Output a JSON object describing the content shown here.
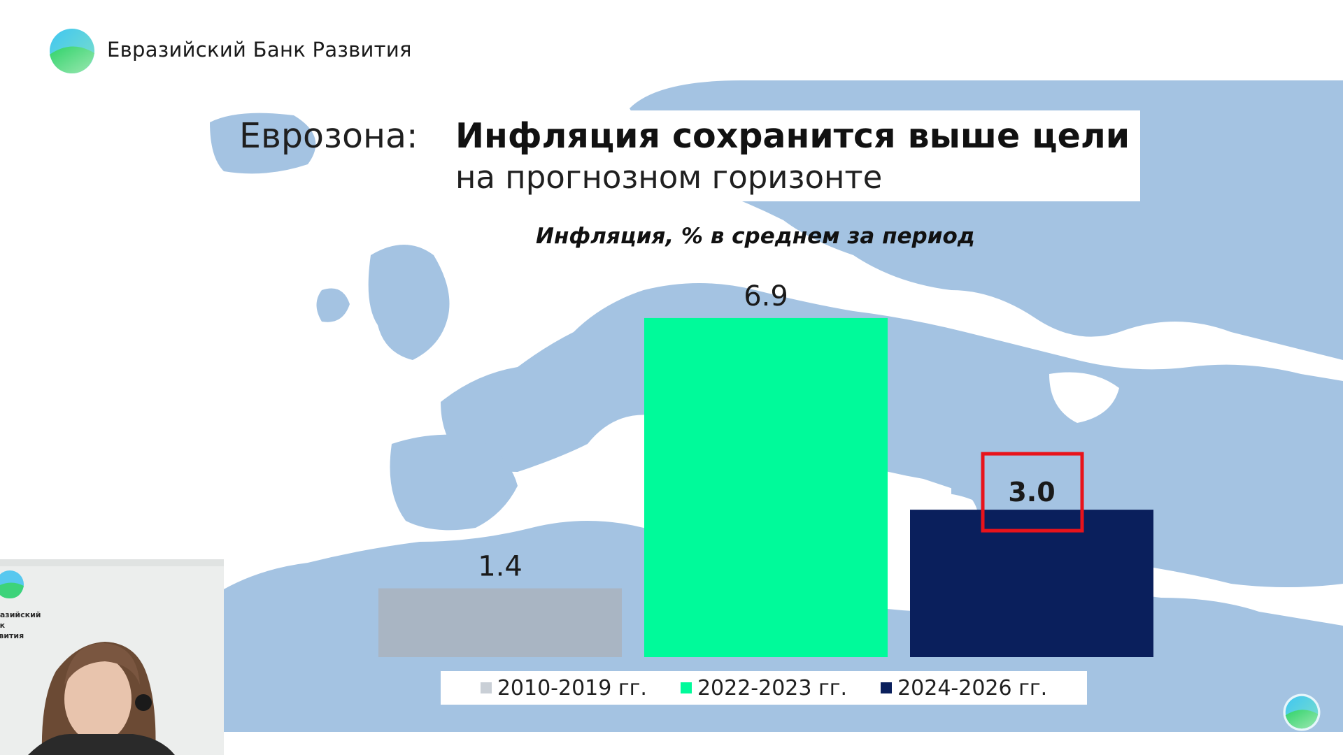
{
  "brand": {
    "name": "Евразийский Банк Развития"
  },
  "slide": {
    "title_region": "Еврозона:",
    "title_main": "Инфляция сохранится выше цели",
    "title_sub": "на прогнозном горизонте",
    "chart_subtitle": "Инфляция, % в среднем за период"
  },
  "webcam": {
    "logo_text": "разийский\nнк\nзвития"
  },
  "colors": {
    "map_land": "#a4c3e2",
    "bar_2010": "#a9b5c3",
    "bar_2022": "#00fa9a",
    "bar_2024": "#0a1f5c",
    "highlight": "#e8131b"
  },
  "chart_data": {
    "type": "bar",
    "title": "Инфляция, % в среднем за период",
    "categories": [
      "2010-2019 гг.",
      "2022-2023 гг.",
      "2024-2026 гг."
    ],
    "values": [
      1.4,
      6.9,
      3.0
    ],
    "value_labels": [
      "1.4",
      "6.9",
      "3.0"
    ],
    "colors": [
      "#a9b5c3",
      "#00fa9a",
      "#0a1f5c"
    ],
    "highlighted_category": "2024-2026 гг.",
    "legend": [
      "2010-2019 гг.",
      "2022-2023 гг.",
      "2024-2026 гг."
    ],
    "legend_position": "bottom",
    "grid": false,
    "xlabel": "",
    "ylabel": ""
  }
}
